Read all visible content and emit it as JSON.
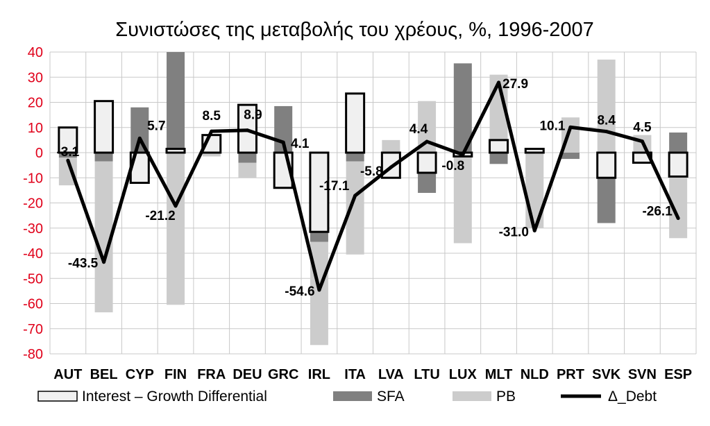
{
  "chart_data": {
    "type": "bar",
    "title": "Συνιστώσες της μεταβολής του χρέους, %, 1996-2007",
    "ylim": [
      -80,
      40
    ],
    "ytick_step": 10,
    "grid": true,
    "legend_position": "bottom",
    "categories": [
      "AUT",
      "BEL",
      "CYP",
      "FIN",
      "FRA",
      "DEU",
      "GRC",
      "IRL",
      "ITA",
      "LVA",
      "LTU",
      "LUX",
      "MLT",
      "NLD",
      "PRT",
      "SVK",
      "SVN",
      "ESP"
    ],
    "series": [
      {
        "name": "Interest – Growth Differential",
        "kind": "stacked-bar-outline",
        "color": "#f0f0f0",
        "values": [
          10,
          20.5,
          -12,
          1.5,
          7,
          19,
          -14,
          -31.5,
          23.5,
          -10,
          -8,
          -1.5,
          5,
          1.5,
          0,
          -10,
          -4,
          -9.5
        ]
      },
      {
        "name": "SFA",
        "kind": "stacked-bar",
        "color": "#808080",
        "values": [
          -2,
          -3.5,
          18,
          38.5,
          0,
          -4,
          18.5,
          -4,
          -3.5,
          0,
          -8,
          35.5,
          -4.5,
          0,
          -2.5,
          -18,
          0,
          8
        ]
      },
      {
        "name": "PB",
        "kind": "stacked-bar",
        "color": "#cccccc",
        "values": [
          -11,
          -60,
          0,
          -60.5,
          -1.5,
          -6,
          0,
          -41,
          -37,
          5,
          20.5,
          -34.5,
          26,
          -30,
          14,
          37,
          7,
          -24.5
        ]
      },
      {
        "name": "Δ_Debt",
        "kind": "line",
        "color": "#000000",
        "values": [
          -3.1,
          -43.5,
          5.7,
          -21.2,
          8.5,
          8.9,
          4.1,
          -54.6,
          -17.1,
          -5.8,
          4.4,
          -0.8,
          27.9,
          -31.0,
          10.1,
          8.4,
          4.5,
          -26.1
        ],
        "labels": [
          "-3.1",
          "-43.5",
          "5.7",
          "-21.2",
          "8.5",
          "8.9",
          "4.1",
          "-54.6",
          "-17.1",
          "-5.8",
          "4.4",
          "-0.8",
          "27.9",
          "-31.0",
          "10.1",
          "8.4",
          "4.5",
          "-26.1"
        ]
      }
    ]
  }
}
